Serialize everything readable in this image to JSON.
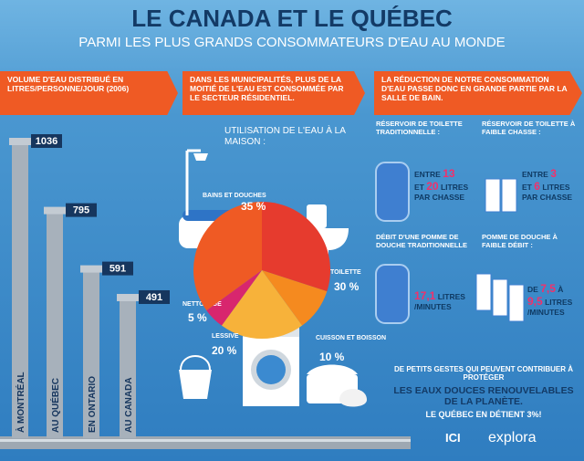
{
  "header": {
    "title": "LE CANADA ET LE QUÉBEC",
    "subtitle": "PARMI LES PLUS GRANDS CONSOMMATEURS D'EAU AU MONDE"
  },
  "middle": {
    "banner": "DANS LES MUNICIPALITÉS, PLUS DE LA MOITIÉ DE L'EAU EST CONSOMMÉE PAR LE SECTEUR RÉSIDENTIEL."
  },
  "right": {
    "banner": "LA RÉDUCTION DE NOTRE CONSOMMATION D'EAU PASSE DONC EN GRANDE PARTIE PAR LA SALLE DE BAIN.",
    "items": [
      {
        "caption": "RÉSERVOIR DE TOILETTE TRADITIONNELLE :",
        "pre": "ENTRE",
        "a": "13",
        "mid": "ET",
        "b": "20",
        "post": "LITRES PAR CHASSE"
      },
      {
        "caption": "RÉSERVOIR DE TOILETTE À FAIBLE CHASSE :",
        "pre": "ENTRE",
        "a": "3",
        "mid": "ET",
        "b": "6",
        "post": "LITRES PAR CHASSE"
      },
      {
        "caption": "DÉBIT D'UNE POMME DE DOUCHE TRADITIONNELLE",
        "a": "17,1",
        "post": "LITRES /MINUTES"
      },
      {
        "caption": "POMME DE DOUCHE À FAIBLE DÉBIT :",
        "pre": "DE",
        "a": "7,5",
        "mid": "À",
        "b": "9,5",
        "post": "LITRES /MINUTES"
      }
    ]
  },
  "chart_data": [
    {
      "type": "bar",
      "title": "VOLUME D'EAU DISTRIBUÉ EN LITRES/PERSONNE/JOUR (2006)",
      "categories": [
        "À MONTRÉAL",
        "AU QUÉBEC",
        "EN ONTARIO",
        "AU CANADA"
      ],
      "values": [
        1036,
        795,
        591,
        491
      ],
      "color": "#a7b1bb"
    },
    {
      "type": "pie",
      "title": "UTILISATION DE L'EAU À LA MAISON :",
      "categories": [
        "TOILETTE",
        "CUISSON ET BOISSON",
        "LESSIVE",
        "NETTOYAGE",
        "BAINS ET DOUCHES"
      ],
      "values": [
        30,
        10,
        20,
        5,
        35
      ],
      "value_labels": [
        "30 %",
        "10 %",
        "20 %",
        "5 %",
        "35 %"
      ],
      "colors": [
        "#e63b2e",
        "#f58a1f",
        "#f7b23a",
        "#d8266e",
        "#ef5a24"
      ]
    }
  ],
  "footer": {
    "line1": "DE PETITS GESTES QUI PEUVENT CONTRIBUER À PROTÉGER",
    "line2": "LES EAUX DOUCES RENOUVELABLES DE LA PLANÈTE.",
    "line3": "LE QUÉBEC EN DÉTIENT 3%!",
    "logo1": "ICI",
    "logo2": "explora"
  }
}
